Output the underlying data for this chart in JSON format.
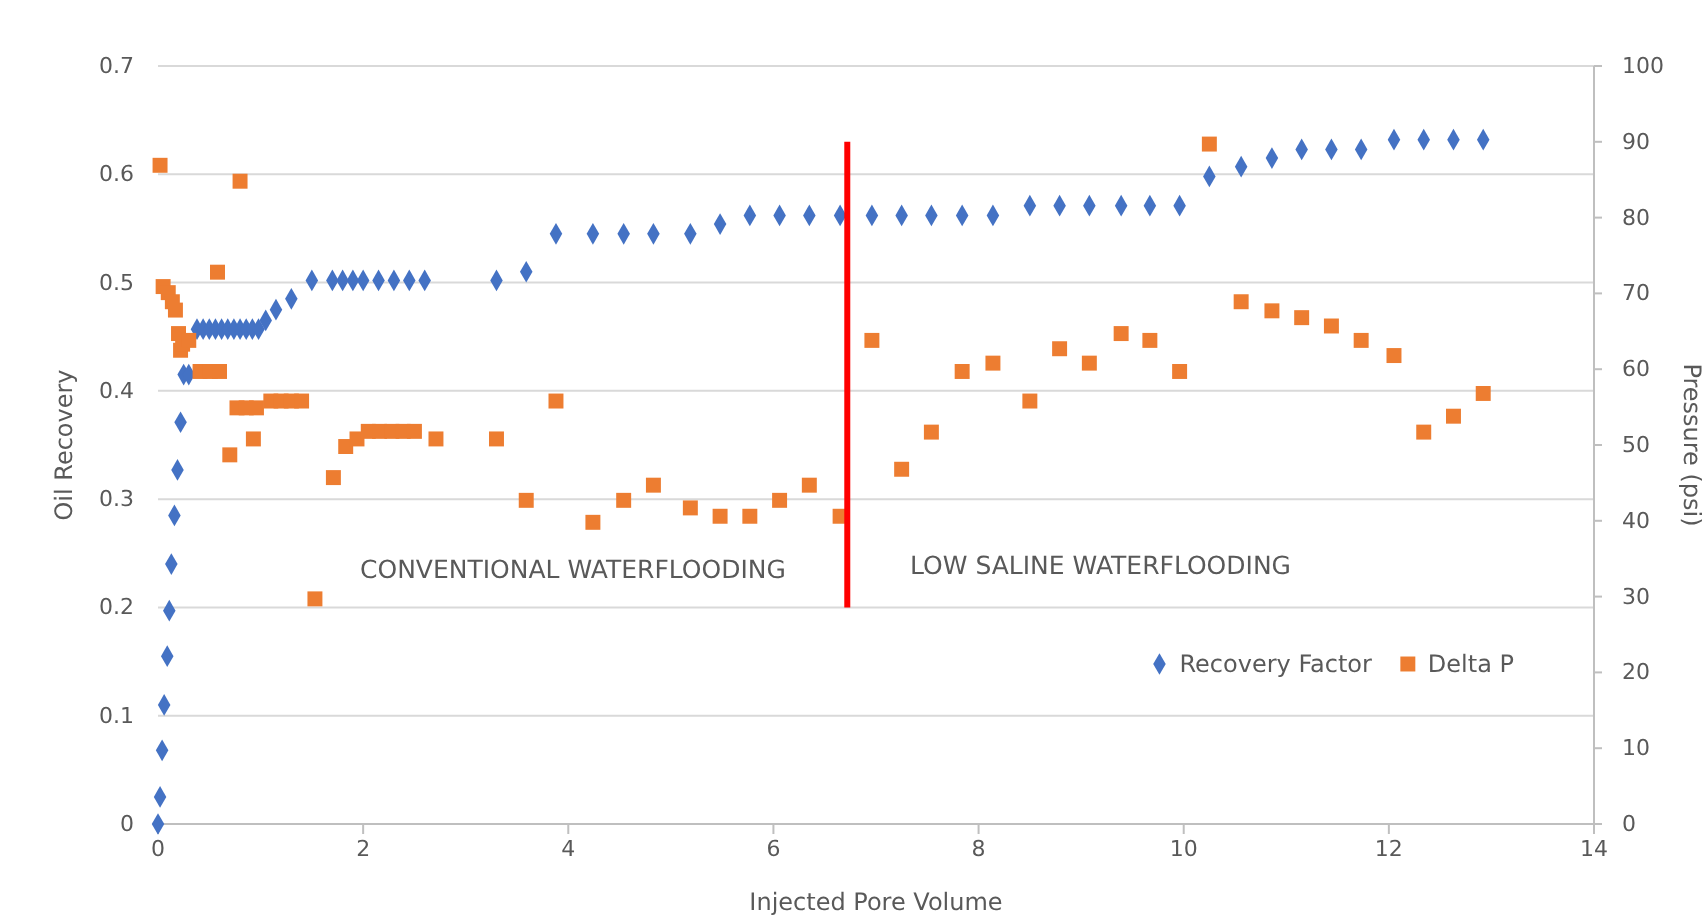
{
  "chart_data": {
    "type": "scatter",
    "xlabel": "Injected Pore Volume",
    "ylabel": "Oil Recovery",
    "y2label": "Pressure (psi)",
    "xlim": [
      0,
      14
    ],
    "xticks": [
      0,
      2,
      4,
      6,
      8,
      10,
      12,
      14
    ],
    "ylim": [
      0,
      0.7
    ],
    "yticks": [
      0,
      0.1,
      0.2,
      0.3,
      0.4,
      0.5,
      0.6,
      0.7
    ],
    "y2lim": [
      0,
      100
    ],
    "y2ticks": [
      0,
      10,
      20,
      30,
      40,
      50,
      60,
      70,
      80,
      90,
      100
    ],
    "grid": "y",
    "legend": "bottom right",
    "series": [
      {
        "name": "Recovery Factor",
        "color": "#4472c4",
        "marker": "diamond",
        "x": [
          0,
          0.02,
          0.04,
          0.06,
          0.09,
          0.11,
          0.13,
          0.16,
          0.19,
          0.22,
          0.25,
          0.3,
          0.38,
          0.44,
          0.5,
          0.56,
          0.62,
          0.68,
          0.74,
          0.8,
          0.86,
          0.92,
          0.98,
          1.05,
          1.15,
          1.3,
          1.5,
          1.7,
          1.8,
          1.9,
          2.0,
          2.15,
          2.3,
          2.45,
          2.6,
          3.3,
          3.59,
          3.88,
          4.24,
          4.54,
          4.83,
          5.19,
          5.48,
          5.77,
          6.06,
          6.35,
          6.65,
          6.96,
          7.25,
          7.54,
          7.84,
          8.14,
          8.5,
          8.79,
          9.08,
          9.39,
          9.67,
          9.96,
          10.25,
          10.56,
          10.86,
          11.15,
          11.44,
          11.73,
          12.05,
          12.34,
          12.63,
          12.92
        ],
        "values": [
          0,
          0.025,
          0.068,
          0.11,
          0.155,
          0.197,
          0.24,
          0.285,
          0.327,
          0.371,
          0.415,
          0.415,
          0.457,
          0.457,
          0.457,
          0.457,
          0.457,
          0.457,
          0.457,
          0.457,
          0.457,
          0.457,
          0.457,
          0.465,
          0.475,
          0.485,
          0.502,
          0.502,
          0.502,
          0.502,
          0.502,
          0.502,
          0.502,
          0.502,
          0.502,
          0.502,
          0.51,
          0.545,
          0.545,
          0.545,
          0.545,
          0.545,
          0.554,
          0.562,
          0.562,
          0.562,
          0.562,
          0.562,
          0.562,
          0.562,
          0.562,
          0.562,
          0.571,
          0.571,
          0.571,
          0.571,
          0.571,
          0.571,
          0.598,
          0.607,
          0.615,
          0.623,
          0.623,
          0.623,
          0.632,
          0.632,
          0.632,
          0.632
        ]
      },
      {
        "name": "Delta P",
        "color": "#ed7d31",
        "marker": "square",
        "axis": "y2",
        "x": [
          0.02,
          0.05,
          0.1,
          0.14,
          0.17,
          0.2,
          0.22,
          0.24,
          0.3,
          0.41,
          0.51,
          0.6,
          0.58,
          0.7,
          0.77,
          0.8,
          0.86,
          0.93,
          0.96,
          1.1,
          1.2,
          1.3,
          1.4,
          1.53,
          1.71,
          1.83,
          1.94,
          2.05,
          2.16,
          2.28,
          2.39,
          2.5,
          2.71,
          3.3,
          3.59,
          3.88,
          4.24,
          4.54,
          4.83,
          5.19,
          5.48,
          5.77,
          6.06,
          6.35,
          6.65,
          6.96,
          7.25,
          7.54,
          7.84,
          8.14,
          8.5,
          8.79,
          9.08,
          9.39,
          9.67,
          9.96,
          10.25,
          10.56,
          10.86,
          11.15,
          11.44,
          11.73,
          12.05,
          12.34,
          12.63,
          12.92
        ],
        "values": [
          86.9,
          70.9,
          70.1,
          68.9,
          67.8,
          64.7,
          62.5,
          63.3,
          63.8,
          59.7,
          59.7,
          59.7,
          72.8,
          48.7,
          54.9,
          84.8,
          54.9,
          50.8,
          54.9,
          55.8,
          55.8,
          55.8,
          55.8,
          29.7,
          45.7,
          49.8,
          50.8,
          51.8,
          51.8,
          51.8,
          51.8,
          51.8,
          50.8,
          50.8,
          42.7,
          55.8,
          39.8,
          42.7,
          44.7,
          41.7,
          40.6,
          40.6,
          42.7,
          44.7,
          40.6,
          63.8,
          46.8,
          51.7,
          59.7,
          60.8,
          55.8,
          62.7,
          60.8,
          64.7,
          63.8,
          59.7,
          89.7,
          68.9,
          67.7,
          66.8,
          65.7,
          63.8,
          61.8,
          51.7,
          53.8,
          56.8
        ]
      },
      {
        "type": "line",
        "color": "#ff0000",
        "x": [
          6.72,
          6.72
        ],
        "values": [
          0.2,
          0.63
        ]
      }
    ],
    "annotations": [
      "CONVENTIONAL WATERFLOODING",
      "LOW SALINE WATERFLOODING"
    ]
  }
}
